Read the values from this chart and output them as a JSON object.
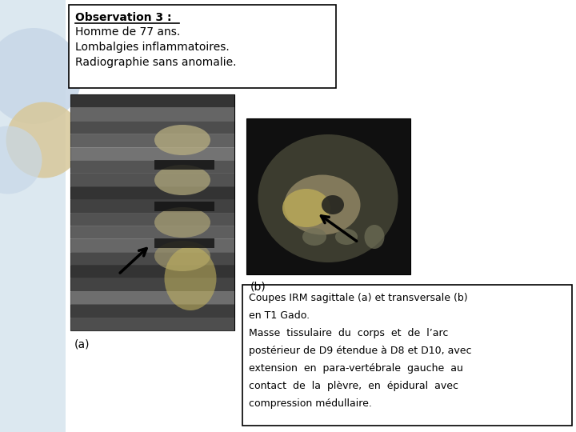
{
  "bg_color": "#dce8f0",
  "title_bold": "Observation 3 :",
  "title_line2": "Homme de 77 ans.",
  "title_line3": "Lombalgies inflammatoires.",
  "title_line4": "Radiographie sans anomalie.",
  "label_a": "(a)",
  "label_b": "(b)",
  "caption_lines": [
    "Coupes IRM sagittale (a) et transversale (b)",
    "en T1 Gado.",
    "Masse  tissulaire  du  corps  et  de  l’arc",
    "postérieur de D9 étendue à D8 et D10, avec",
    "extension  en  para-vertébrale  gauche  au",
    "contact  de  la  plèvre,  en  épidural  avec",
    "compression médullaire."
  ],
  "circle_color_blue": "#c8d8e8",
  "circle_color_tan": "#d8c89a"
}
